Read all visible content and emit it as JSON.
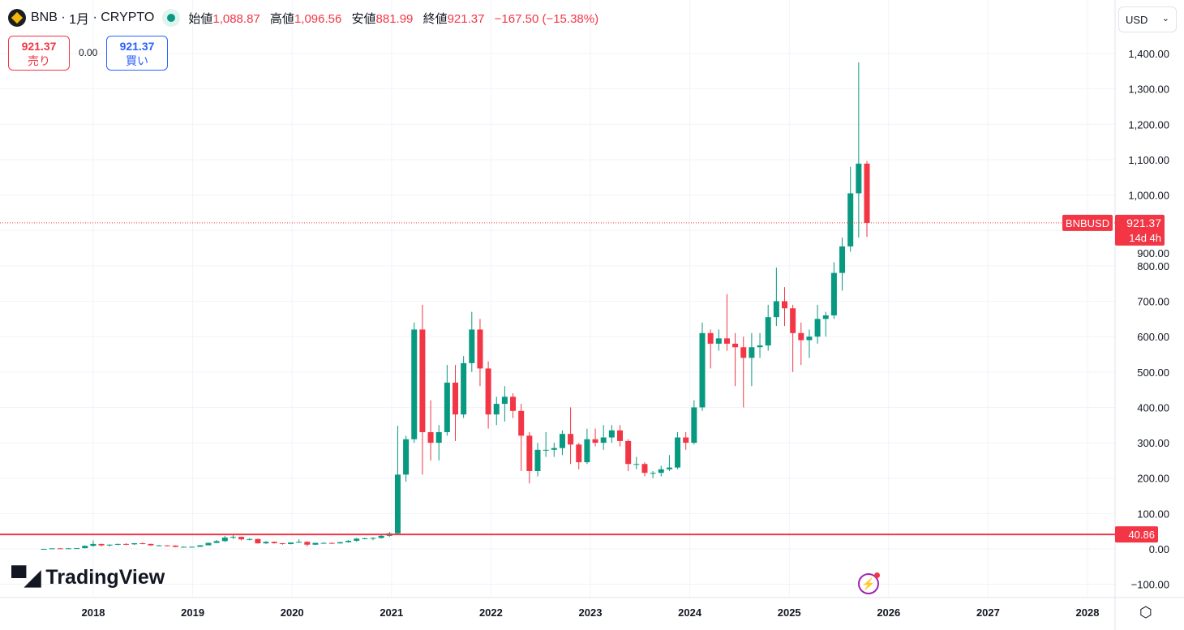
{
  "header": {
    "symbol": "BNB",
    "interval": "1月",
    "exchange": "CRYPTO",
    "open_label": "始値",
    "open": "1,088.87",
    "high_label": "高値",
    "high": "1,096.56",
    "low_label": "安値",
    "low": "881.99",
    "close_label": "終値",
    "close": "921.37",
    "change": "−167.50 (−15.38%)"
  },
  "trade": {
    "sell_price": "921.37",
    "sell_label": "売り",
    "spread": "0.00",
    "buy_price": "921.37",
    "buy_label": "買い"
  },
  "currency": "USD",
  "brand": "TradingView",
  "price_label": {
    "symbol": "BNBUSD",
    "price": "921.37",
    "countdown": "14d 4h"
  },
  "line_label": "40.86",
  "colors": {
    "up": "#089981",
    "down": "#f23645",
    "line": "#f23645"
  },
  "chart_data": {
    "type": "candlestick",
    "y_ticks": [
      1400,
      1300,
      1200,
      1100,
      1000,
      900,
      800,
      700,
      600,
      500,
      400,
      300,
      200,
      100,
      0,
      -100
    ],
    "y_tick_labels": [
      "1,400.00",
      "1,300.00",
      "1,200.00",
      "1,100.00",
      "1,000.00",
      "900.00",
      "800.00",
      "700.00",
      "600.00",
      "500.00",
      "400.00",
      "300.00",
      "200.00",
      "100.00",
      "0.00",
      "−100.00"
    ],
    "x_ticks": [
      "2018",
      "2019",
      "2020",
      "2021",
      "2022",
      "2023",
      "2024",
      "2025",
      "2026",
      "2027",
      "2028"
    ],
    "start": "2017-07",
    "horizontal_line": 40.86,
    "last_price": 921.37,
    "ohlc": [
      [
        0.1,
        0.3,
        0.1,
        0.15
      ],
      [
        0.15,
        1.6,
        0.1,
        1.5
      ],
      [
        1.5,
        2.5,
        0.9,
        1.2
      ],
      [
        1.2,
        2,
        1.1,
        1.6
      ],
      [
        1.6,
        2.3,
        1.4,
        2
      ],
      [
        2,
        10,
        1.9,
        8.7
      ],
      [
        8.7,
        24,
        6,
        14
      ],
      [
        14,
        14.5,
        7,
        10
      ],
      [
        10,
        13,
        7,
        12
      ],
      [
        12,
        15,
        10,
        14
      ],
      [
        14,
        16,
        11,
        13
      ],
      [
        13,
        17,
        11,
        16
      ],
      [
        16,
        18,
        13,
        14
      ],
      [
        14,
        15,
        9,
        10
      ],
      [
        10,
        11,
        9,
        10
      ],
      [
        10,
        11,
        9,
        9.5
      ],
      [
        9.5,
        10,
        5,
        5.8
      ],
      [
        5.8,
        7,
        4.5,
        6
      ],
      [
        6,
        7,
        5,
        6.1
      ],
      [
        6.1,
        11,
        6,
        10.2
      ],
      [
        10.2,
        18,
        10,
        17
      ],
      [
        17,
        25,
        16,
        22
      ],
      [
        22,
        37,
        20,
        32
      ],
      [
        32,
        40,
        28,
        34
      ],
      [
        34,
        35,
        24,
        27
      ],
      [
        27,
        30,
        24,
        28
      ],
      [
        28,
        29,
        15,
        15.8
      ],
      [
        15.8,
        22,
        14,
        20
      ],
      [
        20,
        21,
        15,
        16
      ],
      [
        16,
        17,
        12,
        13.7
      ],
      [
        13.7,
        19,
        13,
        18
      ],
      [
        18,
        27,
        17,
        20
      ],
      [
        20,
        22,
        7,
        12
      ],
      [
        12,
        18,
        11,
        17
      ],
      [
        17,
        19,
        15,
        17
      ],
      [
        17,
        18,
        14,
        15.6
      ],
      [
        15.6,
        20,
        15,
        19
      ],
      [
        19,
        25,
        18,
        23
      ],
      [
        23,
        31,
        20,
        29
      ],
      [
        29,
        32,
        27,
        30
      ],
      [
        30,
        33,
        25,
        31
      ],
      [
        31,
        40,
        29,
        37
      ],
      [
        37,
        48,
        34,
        44
      ],
      [
        44,
        348,
        40,
        210
      ],
      [
        210,
        320,
        190,
        310
      ],
      [
        310,
        640,
        300,
        620
      ],
      [
        620,
        690,
        210,
        330
      ],
      [
        330,
        420,
        250,
        300
      ],
      [
        300,
        350,
        250,
        330
      ],
      [
        330,
        520,
        320,
        470
      ],
      [
        470,
        520,
        305,
        380
      ],
      [
        380,
        545,
        370,
        525
      ],
      [
        525,
        670,
        500,
        620
      ],
      [
        620,
        650,
        460,
        510
      ],
      [
        510,
        530,
        340,
        380
      ],
      [
        380,
        430,
        350,
        410
      ],
      [
        410,
        460,
        360,
        430
      ],
      [
        430,
        440,
        370,
        390
      ],
      [
        390,
        410,
        220,
        320
      ],
      [
        320,
        330,
        185,
        220
      ],
      [
        220,
        300,
        205,
        280
      ],
      [
        280,
        330,
        260,
        280
      ],
      [
        280,
        300,
        260,
        285
      ],
      [
        285,
        335,
        265,
        325
      ],
      [
        325,
        400,
        240,
        295
      ],
      [
        295,
        300,
        225,
        245
      ],
      [
        245,
        340,
        240,
        310
      ],
      [
        310,
        340,
        290,
        300
      ],
      [
        300,
        350,
        280,
        315
      ],
      [
        315,
        350,
        300,
        335
      ],
      [
        335,
        350,
        290,
        305
      ],
      [
        305,
        310,
        220,
        240
      ],
      [
        240,
        260,
        225,
        240
      ],
      [
        240,
        245,
        205,
        215
      ],
      [
        215,
        220,
        200,
        215
      ],
      [
        215,
        235,
        205,
        225
      ],
      [
        225,
        265,
        220,
        230
      ],
      [
        230,
        330,
        225,
        315
      ],
      [
        315,
        330,
        280,
        300
      ],
      [
        300,
        420,
        295,
        400
      ],
      [
        400,
        640,
        390,
        610
      ],
      [
        610,
        620,
        510,
        580
      ],
      [
        580,
        620,
        560,
        595
      ],
      [
        595,
        720,
        560,
        580
      ],
      [
        580,
        610,
        460,
        570
      ],
      [
        570,
        600,
        400,
        540
      ],
      [
        540,
        610,
        460,
        570
      ],
      [
        570,
        610,
        540,
        575
      ],
      [
        575,
        690,
        560,
        655
      ],
      [
        655,
        795,
        630,
        700
      ],
      [
        700,
        740,
        630,
        680
      ],
      [
        680,
        690,
        500,
        610
      ],
      [
        610,
        640,
        520,
        590
      ],
      [
        590,
        620,
        540,
        600
      ],
      [
        600,
        690,
        580,
        650
      ],
      [
        650,
        670,
        600,
        660
      ],
      [
        660,
        810,
        650,
        780
      ],
      [
        780,
        880,
        730,
        855
      ],
      [
        855,
        1080,
        840,
        1005
      ],
      [
        1005,
        1375,
        880,
        1088.87
      ],
      [
        1088.87,
        1096.56,
        881.99,
        921.37
      ]
    ]
  }
}
